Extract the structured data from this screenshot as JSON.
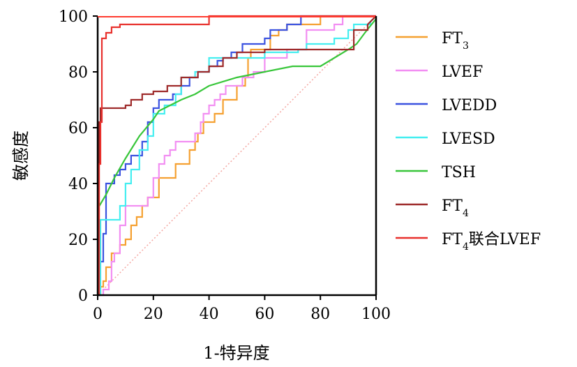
{
  "chart_data": {
    "type": "line",
    "title": "",
    "xlabel": "1-特异度",
    "ylabel": "敏感度",
    "xlim": [
      0,
      100
    ],
    "ylim": [
      0,
      100
    ],
    "x_ticks": [
      "0",
      "20",
      "40",
      "60",
      "80",
      "100"
    ],
    "y_ticks": [
      "0",
      "20",
      "40",
      "60",
      "80",
      "100"
    ],
    "legend_position": "right",
    "reference_line": {
      "name": "reference",
      "color": "#f4a6a0",
      "style": "dotted",
      "x": [
        0,
        100
      ],
      "y": [
        0,
        100
      ]
    },
    "series": [
      {
        "name": "FT3",
        "label_main": "FT",
        "label_sub": "3",
        "label_suffix": "",
        "color": "#f5a030",
        "step": true,
        "x": [
          0,
          1,
          1,
          2,
          2,
          3,
          3,
          5,
          5,
          8,
          8,
          10,
          10,
          12,
          12,
          14,
          14,
          16,
          16,
          18,
          18,
          22,
          22,
          28,
          28,
          33,
          33,
          35,
          35,
          36,
          36,
          38,
          38,
          42,
          42,
          45,
          45,
          50,
          50,
          53,
          53,
          54,
          54,
          55,
          55,
          62,
          62,
          65,
          65,
          68,
          68,
          80,
          80,
          100
        ],
        "y": [
          0,
          0,
          3,
          3,
          5,
          5,
          10,
          10,
          15,
          15,
          18,
          18,
          20,
          20,
          25,
          25,
          28,
          28,
          32,
          32,
          35,
          35,
          42,
          42,
          47,
          47,
          52,
          52,
          55,
          55,
          58,
          58,
          62,
          62,
          65,
          65,
          70,
          70,
          75,
          75,
          78,
          78,
          85,
          85,
          88,
          88,
          93,
          93,
          95,
          95,
          97,
          97,
          100,
          100
        ]
      },
      {
        "name": "LVEF",
        "label_main": "LVEF",
        "label_sub": "",
        "label_suffix": "",
        "color": "#f28ef2",
        "step": true,
        "x": [
          0,
          2,
          2,
          4,
          4,
          5,
          5,
          6,
          6,
          8,
          8,
          10,
          10,
          18,
          18,
          20,
          20,
          22,
          22,
          24,
          24,
          26,
          26,
          28,
          28,
          35,
          35,
          37,
          37,
          38,
          38,
          40,
          40,
          42,
          42,
          44,
          44,
          46,
          46,
          52,
          52,
          56,
          56,
          60,
          60,
          68,
          68,
          75,
          75,
          85,
          85,
          88,
          88,
          100
        ],
        "y": [
          0,
          0,
          2,
          2,
          5,
          5,
          12,
          12,
          15,
          15,
          25,
          25,
          32,
          32,
          35,
          35,
          42,
          42,
          47,
          47,
          50,
          50,
          52,
          52,
          55,
          55,
          58,
          58,
          62,
          62,
          65,
          65,
          68,
          68,
          70,
          70,
          72,
          72,
          75,
          75,
          78,
          78,
          80,
          80,
          85,
          85,
          88,
          88,
          95,
          95,
          97,
          97,
          100,
          100
        ]
      },
      {
        "name": "LVEDD",
        "label_main": "LVEDD",
        "label_sub": "",
        "label_suffix": "",
        "color": "#3a52e0",
        "step": true,
        "x": [
          0,
          0.5,
          0.5,
          2,
          2,
          3,
          3,
          6,
          6,
          8,
          8,
          10,
          10,
          12,
          12,
          16,
          16,
          18,
          18,
          20,
          20,
          22,
          22,
          27,
          27,
          30,
          30,
          33,
          33,
          36,
          36,
          40,
          40,
          43,
          43,
          45,
          45,
          48,
          48,
          52,
          52,
          60,
          60,
          62,
          62,
          68,
          68,
          73,
          73,
          83,
          83,
          88,
          88,
          100
        ],
        "y": [
          0,
          0,
          12,
          12,
          22,
          22,
          40,
          40,
          43,
          43,
          45,
          45,
          47,
          47,
          50,
          50,
          55,
          55,
          62,
          62,
          67,
          67,
          70,
          70,
          72,
          72,
          75,
          75,
          78,
          78,
          80,
          80,
          82,
          82,
          84,
          84,
          85,
          85,
          87,
          87,
          90,
          90,
          92,
          92,
          95,
          95,
          97,
          97,
          100,
          100,
          100,
          100,
          100,
          100
        ]
      },
      {
        "name": "LVESD",
        "label_main": "LVESD",
        "label_sub": "",
        "label_suffix": "",
        "color": "#44eef0",
        "step": true,
        "x": [
          0,
          1,
          1,
          8,
          8,
          10,
          10,
          12,
          12,
          15,
          15,
          18,
          18,
          20,
          20,
          24,
          24,
          28,
          28,
          30,
          30,
          35,
          35,
          40,
          40,
          60,
          60,
          72,
          72,
          75,
          75,
          85,
          85,
          90,
          90,
          92,
          92,
          98,
          98,
          100
        ],
        "y": [
          0,
          0,
          27,
          27,
          32,
          32,
          40,
          40,
          45,
          45,
          52,
          52,
          57,
          57,
          65,
          65,
          68,
          68,
          72,
          72,
          78,
          78,
          80,
          80,
          85,
          85,
          87,
          87,
          88,
          88,
          90,
          90,
          92,
          92,
          95,
          95,
          97,
          97,
          98,
          100
        ]
      },
      {
        "name": "TSH",
        "label_main": "TSH",
        "label_sub": "",
        "label_suffix": "",
        "color": "#38c63a",
        "step": false,
        "x": [
          0,
          3,
          6,
          10,
          15,
          20,
          22,
          30,
          35,
          40,
          50,
          60,
          70,
          80,
          85,
          90,
          93,
          96,
          100
        ],
        "y": [
          31,
          36,
          42,
          49,
          57,
          63,
          66,
          70,
          72,
          75,
          78,
          80,
          82,
          82,
          85,
          88,
          90,
          94,
          99
        ]
      },
      {
        "name": "FT4",
        "label_main": "FT",
        "label_sub": "4",
        "label_suffix": "",
        "color": "#9e2a2a",
        "step": true,
        "x": [
          0,
          0.5,
          0.5,
          1,
          1,
          10,
          10,
          12,
          12,
          16,
          16,
          20,
          20,
          25,
          25,
          30,
          30,
          36,
          36,
          40,
          40,
          45,
          45,
          50,
          50,
          60,
          60,
          92,
          92,
          97,
          97,
          100
        ],
        "y": [
          0,
          0,
          62,
          62,
          67,
          67,
          68,
          68,
          70,
          70,
          72,
          72,
          73,
          73,
          75,
          75,
          78,
          78,
          80,
          80,
          82,
          82,
          85,
          85,
          87,
          87,
          88,
          88,
          95,
          95,
          97,
          100
        ]
      },
      {
        "name": "FT4联合LVEF",
        "label_main": "FT",
        "label_sub": "4",
        "label_suffix": "联合LVEF",
        "color": "#e8302c",
        "step": true,
        "x": [
          0,
          0.5,
          0.5,
          1,
          1,
          1.5,
          1.5,
          3,
          3,
          5,
          5,
          8,
          8,
          40,
          40,
          100
        ],
        "y": [
          0,
          0,
          47,
          47,
          62,
          62,
          92,
          92,
          94,
          94,
          96,
          96,
          97,
          97,
          100,
          100
        ]
      }
    ]
  }
}
